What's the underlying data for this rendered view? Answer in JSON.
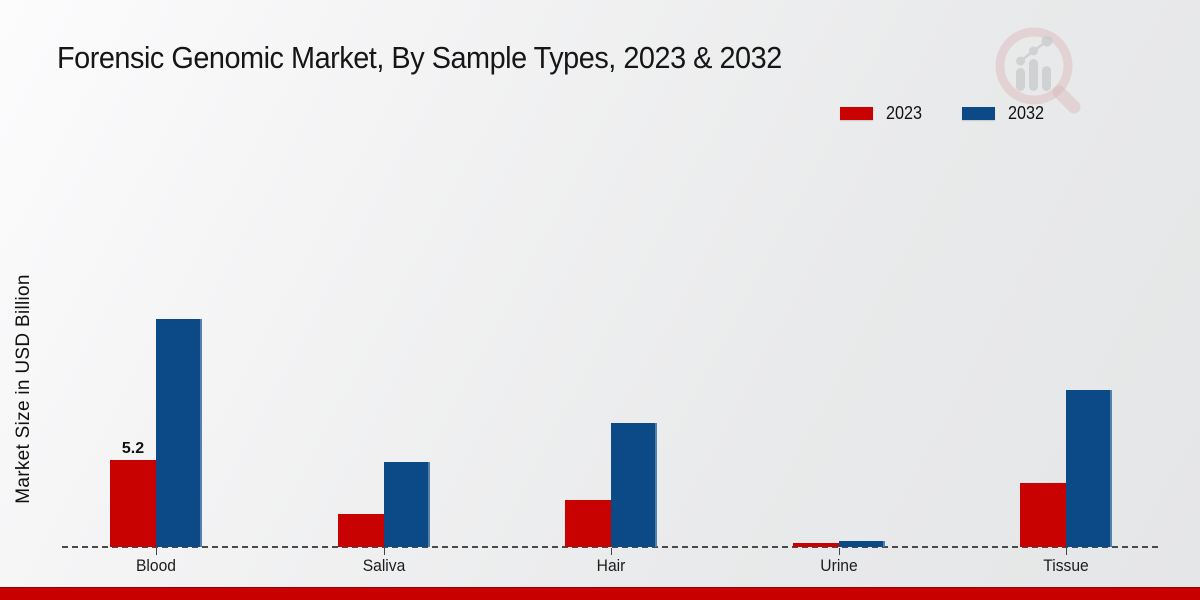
{
  "title": "Forensic Genomic Market, By Sample Types, 2023 & 2032",
  "chart_data": {
    "type": "bar",
    "title": "Forensic Genomic Market, By Sample Types, 2023 & 2032",
    "xlabel": "",
    "ylabel": "Market Size in USD Billion",
    "categories": [
      "Blood",
      "Saliva",
      "Hair",
      "Urine",
      "Tissue"
    ],
    "series": [
      {
        "name": "2023",
        "color": "#c80101",
        "values": [
          5.2,
          2.0,
          2.8,
          0.25,
          3.8
        ],
        "data_labels": [
          "5.2",
          "",
          "",
          "",
          ""
        ]
      },
      {
        "name": "2032",
        "color": "#0c4a87",
        "values": [
          13.6,
          5.1,
          7.4,
          0.33,
          9.4
        ],
        "data_labels": [
          "",
          "",
          "",
          "",
          ""
        ]
      }
    ],
    "legend_position": "top-right",
    "legend_entries": [
      "2023",
      "2032"
    ],
    "axis": {
      "baseline_style": "dashed",
      "gridlines": false,
      "y_ticks_visible": false,
      "ylim": [
        0,
        16
      ]
    }
  },
  "watermark": {
    "name": "market-research-magnifier-logo",
    "ring_color": "#d9aeb2",
    "bars_color": "#c3c6c9"
  },
  "colors": {
    "accent_red": "#c80101",
    "accent_blue": "#0c4a87",
    "footer_bar": "#c80000",
    "baseline": "#4a4a4a"
  }
}
